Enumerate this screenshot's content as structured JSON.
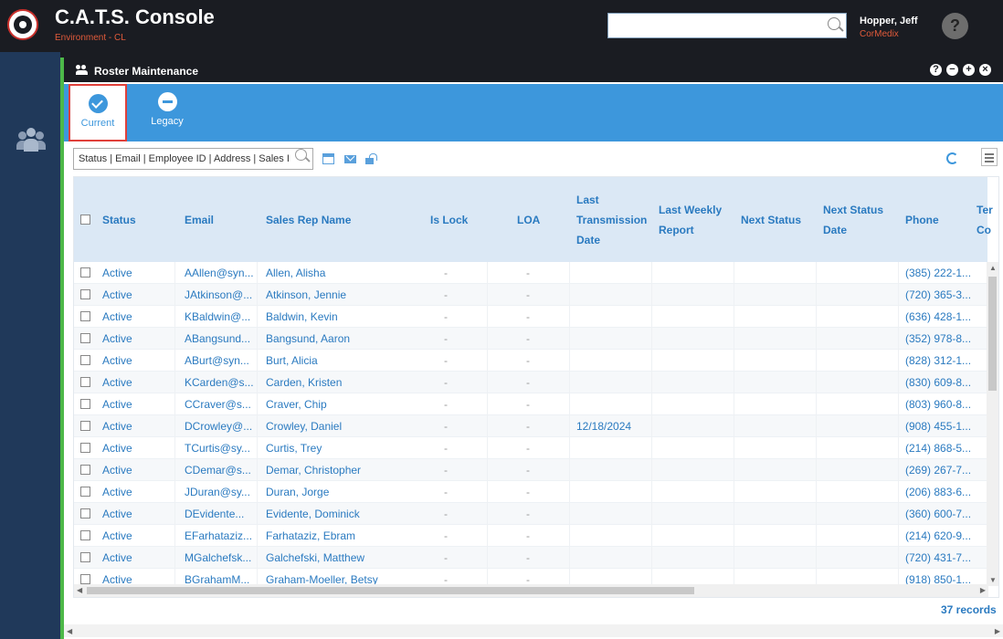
{
  "app": {
    "title": "C.A.T.S. Console",
    "environment": "Environment - CL"
  },
  "header": {
    "search_value": "",
    "user_name": "Hopper, Jeff",
    "user_org": "CorMedix",
    "help": "?"
  },
  "panel": {
    "title": "Roster Maintenance",
    "header_buttons": [
      "help-icon",
      "minimize-icon",
      "expand-icon",
      "close-icon"
    ]
  },
  "toolbar": {
    "current_label": "Current",
    "legacy_label": "Legacy"
  },
  "filter": {
    "placeholder": "Status | Email | Employee ID | Address | Sales I"
  },
  "grid": {
    "columns": {
      "status": "Status",
      "email": "Email",
      "sales_rep": "Sales Rep Name",
      "is_lock": "Is Lock",
      "loa": "LOA",
      "last_trans_1": "Last",
      "last_trans_2": "Transmission",
      "last_trans_3": "Date",
      "last_weekly_1": "Last Weekly",
      "last_weekly_2": "Report",
      "next_status": "Next Status",
      "next_status_date_1": "Next Status",
      "next_status_date_2": "Date",
      "phone": "Phone",
      "ter_1": "Ter",
      "ter_2": "Co"
    },
    "rows": [
      {
        "status": "Active",
        "email": "AAllen@syn...",
        "name": "Allen, Alisha",
        "is_lock": "-",
        "loa": "-",
        "last_trans": "",
        "phone": "(385) 222-1..."
      },
      {
        "status": "Active",
        "email": "JAtkinson@...",
        "name": "Atkinson, Jennie",
        "is_lock": "-",
        "loa": "-",
        "last_trans": "",
        "phone": "(720) 365-3..."
      },
      {
        "status": "Active",
        "email": "KBaldwin@...",
        "name": "Baldwin, Kevin",
        "is_lock": "-",
        "loa": "-",
        "last_trans": "",
        "phone": "(636) 428-1..."
      },
      {
        "status": "Active",
        "email": "ABangsund...",
        "name": "Bangsund, Aaron",
        "is_lock": "-",
        "loa": "-",
        "last_trans": "",
        "phone": "(352) 978-8..."
      },
      {
        "status": "Active",
        "email": "ABurt@syn...",
        "name": "Burt, Alicia",
        "is_lock": "-",
        "loa": "-",
        "last_trans": "",
        "phone": "(828) 312-1..."
      },
      {
        "status": "Active",
        "email": "KCarden@s...",
        "name": "Carden, Kristen",
        "is_lock": "-",
        "loa": "-",
        "last_trans": "",
        "phone": "(830) 609-8..."
      },
      {
        "status": "Active",
        "email": "CCraver@s...",
        "name": "Craver, Chip",
        "is_lock": "-",
        "loa": "-",
        "last_trans": "",
        "phone": "(803) 960-8..."
      },
      {
        "status": "Active",
        "email": "DCrowley@...",
        "name": "Crowley, Daniel",
        "is_lock": "-",
        "loa": "-",
        "last_trans": "12/18/2024",
        "phone": "(908) 455-1..."
      },
      {
        "status": "Active",
        "email": "TCurtis@sy...",
        "name": "Curtis, Trey",
        "is_lock": "-",
        "loa": "-",
        "last_trans": "",
        "phone": "(214) 868-5..."
      },
      {
        "status": "Active",
        "email": "CDemar@s...",
        "name": "Demar, Christopher",
        "is_lock": "-",
        "loa": "-",
        "last_trans": "",
        "phone": "(269) 267-7..."
      },
      {
        "status": "Active",
        "email": "JDuran@sy...",
        "name": "Duran, Jorge",
        "is_lock": "-",
        "loa": "-",
        "last_trans": "",
        "phone": "(206) 883-6..."
      },
      {
        "status": "Active",
        "email": "DEvidente...",
        "name": "Evidente, Dominick",
        "is_lock": "-",
        "loa": "-",
        "last_trans": "",
        "phone": "(360) 600-7..."
      },
      {
        "status": "Active",
        "email": "EFarhataziz...",
        "name": "Farhataziz, Ebram",
        "is_lock": "-",
        "loa": "-",
        "last_trans": "",
        "phone": "(214) 620-9..."
      },
      {
        "status": "Active",
        "email": "MGalchefsk...",
        "name": "Galchefski, Matthew",
        "is_lock": "-",
        "loa": "-",
        "last_trans": "",
        "phone": "(720) 431-7..."
      },
      {
        "status": "Active",
        "email": "BGrahamM...",
        "name": "Graham-Moeller, Betsy",
        "is_lock": "-",
        "loa": "-",
        "last_trans": "",
        "phone": "(918) 850-1..."
      }
    ]
  },
  "footer": {
    "records": "37 records"
  }
}
